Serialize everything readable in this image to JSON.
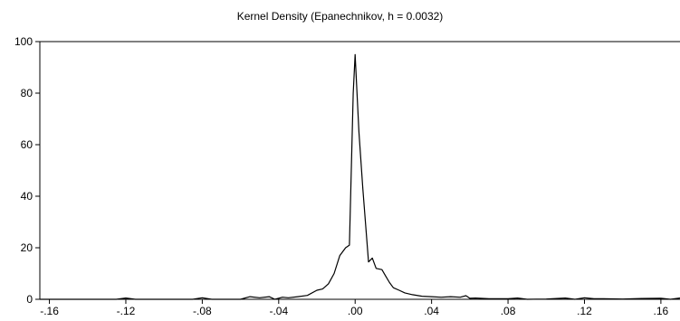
{
  "chart_data": {
    "type": "line",
    "title": "Kernel Density (Epanechnikov, h = 0.0032)",
    "xlabel": "",
    "ylabel": "",
    "xlim": [
      -0.165,
      0.17
    ],
    "ylim": [
      0,
      100
    ],
    "grid": false,
    "x_ticks": [
      -0.16,
      -0.12,
      -0.08,
      -0.04,
      0.0,
      0.04,
      0.08,
      0.12,
      0.16
    ],
    "x_tick_labels": [
      "-.16",
      "-.12",
      "-.08",
      "-.04",
      ".00",
      ".04",
      ".08",
      ".12",
      ".16"
    ],
    "y_ticks": [
      0,
      20,
      40,
      60,
      80,
      100
    ],
    "y_tick_labels": [
      "0",
      "20",
      "40",
      "60",
      "80",
      "100"
    ],
    "line_color": "#000000",
    "series": [
      {
        "x": [
          -0.165,
          -0.14,
          -0.125,
          -0.12,
          -0.115,
          -0.1,
          -0.085,
          -0.08,
          -0.075,
          -0.06,
          -0.055,
          -0.05,
          -0.045,
          -0.042,
          -0.038,
          -0.035,
          -0.03,
          -0.025,
          -0.02,
          -0.017,
          -0.014,
          -0.011,
          -0.008,
          -0.005,
          -0.003,
          -0.001,
          0.0,
          0.002,
          0.004,
          0.007,
          0.009,
          0.011,
          0.014,
          0.016,
          0.018,
          0.02,
          0.023,
          0.026,
          0.03,
          0.035,
          0.04,
          0.045,
          0.05,
          0.055,
          0.058,
          0.06,
          0.063,
          0.07,
          0.08,
          0.085,
          0.09,
          0.1,
          0.11,
          0.115,
          0.12,
          0.125,
          0.13,
          0.14,
          0.15,
          0.16,
          0.165,
          0.17
        ],
        "y": [
          0,
          0,
          0,
          0.5,
          0,
          0,
          0,
          0.6,
          0,
          0,
          1,
          0.6,
          1,
          0,
          0.8,
          0.6,
          1,
          1.5,
          3.5,
          4,
          6,
          10,
          17,
          20,
          21,
          80,
          95,
          65,
          43,
          14.5,
          16,
          12,
          11.5,
          9,
          6.5,
          4.5,
          3.5,
          2.5,
          1.8,
          1.2,
          1,
          0.8,
          1,
          0.8,
          1.4,
          0.4,
          0.5,
          0.2,
          0.2,
          0.5,
          0,
          0.1,
          0.5,
          0,
          0.6,
          0.2,
          0.2,
          0.1,
          0.3,
          0.4,
          0,
          0.5
        ]
      }
    ]
  }
}
